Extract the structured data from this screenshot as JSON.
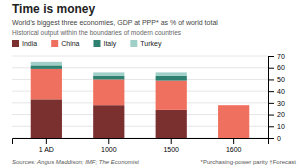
{
  "chart_data": {
    "type": "bar",
    "stacked": true,
    "title": "Time is money",
    "subtitle": "World’s biggest three economies, GDP at PPP* as % of world total",
    "annotations": [
      "Historical output within the boundaries of modern countries",
      "Sources: Angus Maddison; IMF; The Economist",
      "*Purchasing-power parity  †Forecast"
    ],
    "categories": [
      "1 AD",
      "1000",
      "1500",
      "1600"
    ],
    "series": [
      {
        "name": "India",
        "color": "#7b3030",
        "values": [
          33,
          28,
          24,
          0
        ]
      },
      {
        "name": "China",
        "color": "#f07060",
        "values": [
          26,
          22,
          25,
          28
        ]
      },
      {
        "name": "Italy",
        "color": "#2e8070",
        "values": [
          3,
          3,
          4,
          0
        ]
      },
      {
        "name": "Turkey",
        "color": "#a0cfc8",
        "values": [
          3,
          3,
          3,
          0
        ]
      }
    ],
    "ylim": [
      0,
      70
    ],
    "yticks": [
      0,
      10,
      20,
      30,
      40,
      50,
      60,
      70
    ],
    "grid": true,
    "legend": "top-left"
  }
}
